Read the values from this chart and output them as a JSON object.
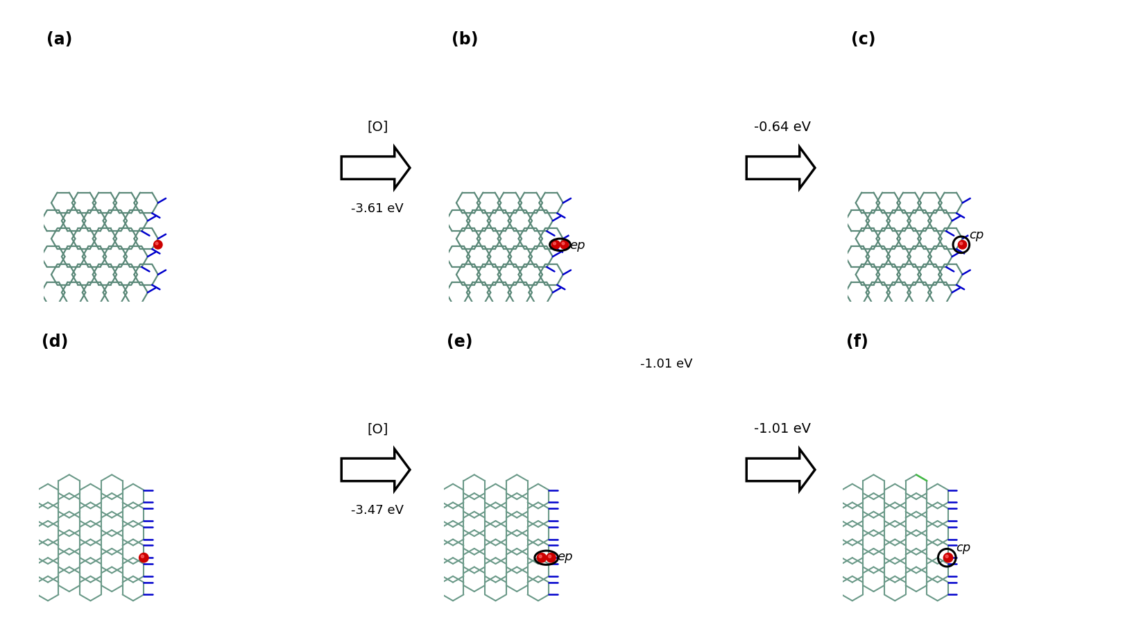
{
  "panel_labels": [
    "(a)",
    "(b)",
    "(c)",
    "(d)",
    "(e)",
    "(f)"
  ],
  "arrow_ab_top": "[O]",
  "arrow_ab_energy": "-3.61 eV",
  "arrow_bc_energy": "-0.64 eV",
  "arrow_de_top": "[O]",
  "arrow_de_energy": "-3.47 eV",
  "arrow_ef_energy": "-1.01 eV",
  "ep_label": "ep",
  "cp_label": "cp",
  "gc_top": "#5a8878",
  "gc_bot": "#6a9988",
  "blue_color": "#0000cc",
  "red_color": "#cc0000",
  "black_color": "#000000",
  "label_fontsize": 17,
  "annot_fontsize": 13,
  "arrow_text_fontsize": 15
}
